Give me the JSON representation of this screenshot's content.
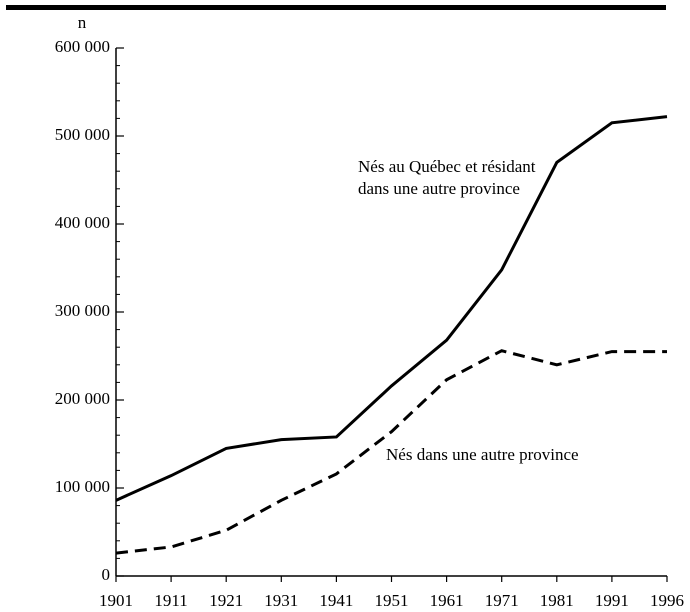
{
  "chart_data": {
    "type": "line",
    "ylabel": "n",
    "categories": [
      "1901",
      "1911",
      "1921",
      "1931",
      "1941",
      "1951",
      "1961",
      "1971",
      "1981",
      "1991",
      "1996"
    ],
    "series": [
      {
        "name": "Nés au Québec et résidant dans une autre province",
        "color": "#000000",
        "dash": "solid",
        "values": [
          86000,
          114000,
          145000,
          155000,
          158000,
          216000,
          268000,
          348000,
          470000,
          515000,
          522000
        ]
      },
      {
        "name": "Nés dans une autre province",
        "color": "#000000",
        "dash": "dashed",
        "values": [
          26000,
          33000,
          52000,
          86000,
          116000,
          164000,
          223000,
          256000,
          240000,
          255000,
          255000
        ]
      }
    ],
    "ylim": [
      0,
      600000
    ],
    "yticks": [
      {
        "value": 0,
        "label": "0"
      },
      {
        "value": 100000,
        "label": "100 000"
      },
      {
        "value": 200000,
        "label": "200 000"
      },
      {
        "value": 300000,
        "label": "300 000"
      },
      {
        "value": 400000,
        "label": "400 000"
      },
      {
        "value": 500000,
        "label": "500 000"
      },
      {
        "value": 600000,
        "label": "600 000"
      }
    ],
    "grid": false
  }
}
